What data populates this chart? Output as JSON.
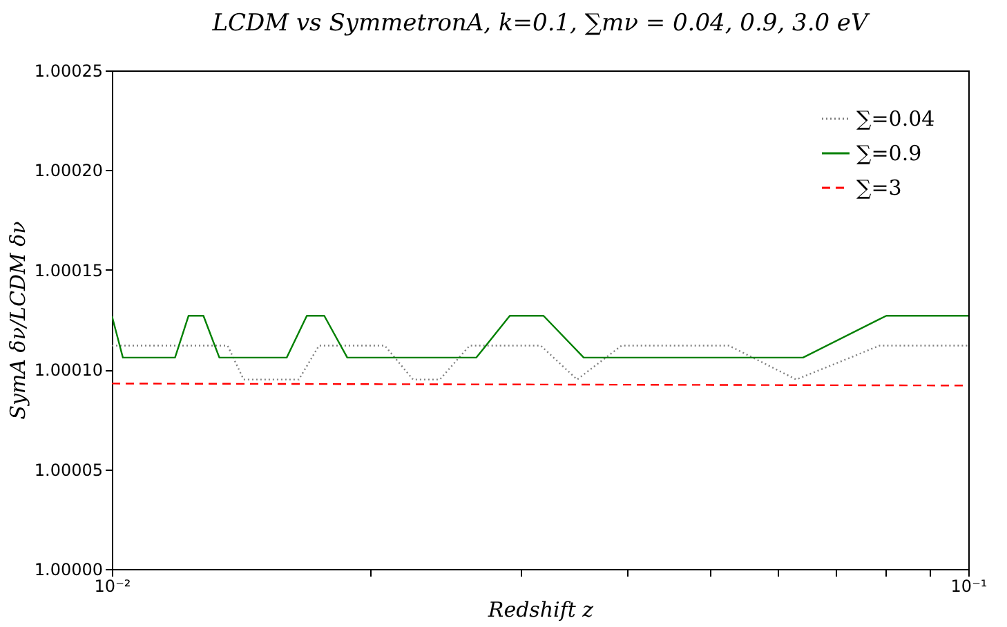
{
  "chart_data": {
    "type": "line",
    "title": "LCDM vs SymmetronA, k=0.1, ∑mν = 0.04, 0.9, 3.0 eV",
    "xlabel": "Redshift z",
    "ylabel": "SymA δν/LCDM δν",
    "log": "x",
    "grid": false,
    "legend": "top right",
    "marker": "none",
    "xlim": [
      0.01,
      0.1
    ],
    "xticks": [
      {
        "value": 0.01,
        "label": "10⁻²"
      },
      {
        "value": 0.02,
        "label": null
      },
      {
        "value": 0.03,
        "label": null
      },
      {
        "value": 0.04,
        "label": null
      },
      {
        "value": 0.05,
        "label": null
      },
      {
        "value": 0.06,
        "label": null
      },
      {
        "value": 0.07,
        "label": null
      },
      {
        "value": 0.08,
        "label": null
      },
      {
        "value": 0.09,
        "label": null
      },
      {
        "value": 0.1,
        "label": "10⁻¹"
      }
    ],
    "ylim": [
      1.0,
      1.00025
    ],
    "yticks": [
      {
        "value": 1.0,
        "label": "1.00000"
      },
      {
        "value": 1.00005,
        "label": "1.00005"
      },
      {
        "value": 1.0001,
        "label": "1.00010"
      },
      {
        "value": 1.00015,
        "label": "1.00015"
      },
      {
        "value": 1.0002,
        "label": "1.00020"
      },
      {
        "value": 1.00025,
        "label": "1.00025"
      }
    ],
    "series": [
      {
        "name": "∑=0.04",
        "color": "#808080",
        "line_style": "dotted",
        "x": [
          0.01,
          0.01365,
          0.01425,
          0.01653,
          0.01745,
          0.02083,
          0.02247,
          0.02415,
          0.02616,
          0.03168,
          0.03493,
          0.03936,
          0.05255,
          0.06297,
          0.07877,
          0.1
        ],
        "values": [
          1.000112,
          1.000112,
          1.000095,
          1.000095,
          1.000112,
          1.000112,
          1.000095,
          1.000095,
          1.000112,
          1.000112,
          1.000095,
          1.000112,
          1.000112,
          1.000095,
          1.000112,
          1.000112
        ]
      },
      {
        "name": "∑=0.9",
        "color": "#008000",
        "line_style": "solid",
        "x": [
          0.01,
          0.0103,
          0.01185,
          0.01229,
          0.01279,
          0.01335,
          0.016,
          0.01689,
          0.0177,
          0.01883,
          0.02664,
          0.02915,
          0.03191,
          0.03556,
          0.06411,
          0.08023,
          0.1
        ],
        "values": [
          1.000127,
          1.000106,
          1.000106,
          1.000127,
          1.000127,
          1.000106,
          1.000106,
          1.000127,
          1.000127,
          1.000106,
          1.000106,
          1.000127,
          1.000127,
          1.000106,
          1.000106,
          1.000127,
          1.000127
        ]
      },
      {
        "name": "∑=3",
        "color": "#ff0000",
        "line_style": "dashed",
        "x": [
          0.01,
          0.1
        ],
        "values": [
          1.000093,
          1.000092
        ]
      }
    ]
  }
}
